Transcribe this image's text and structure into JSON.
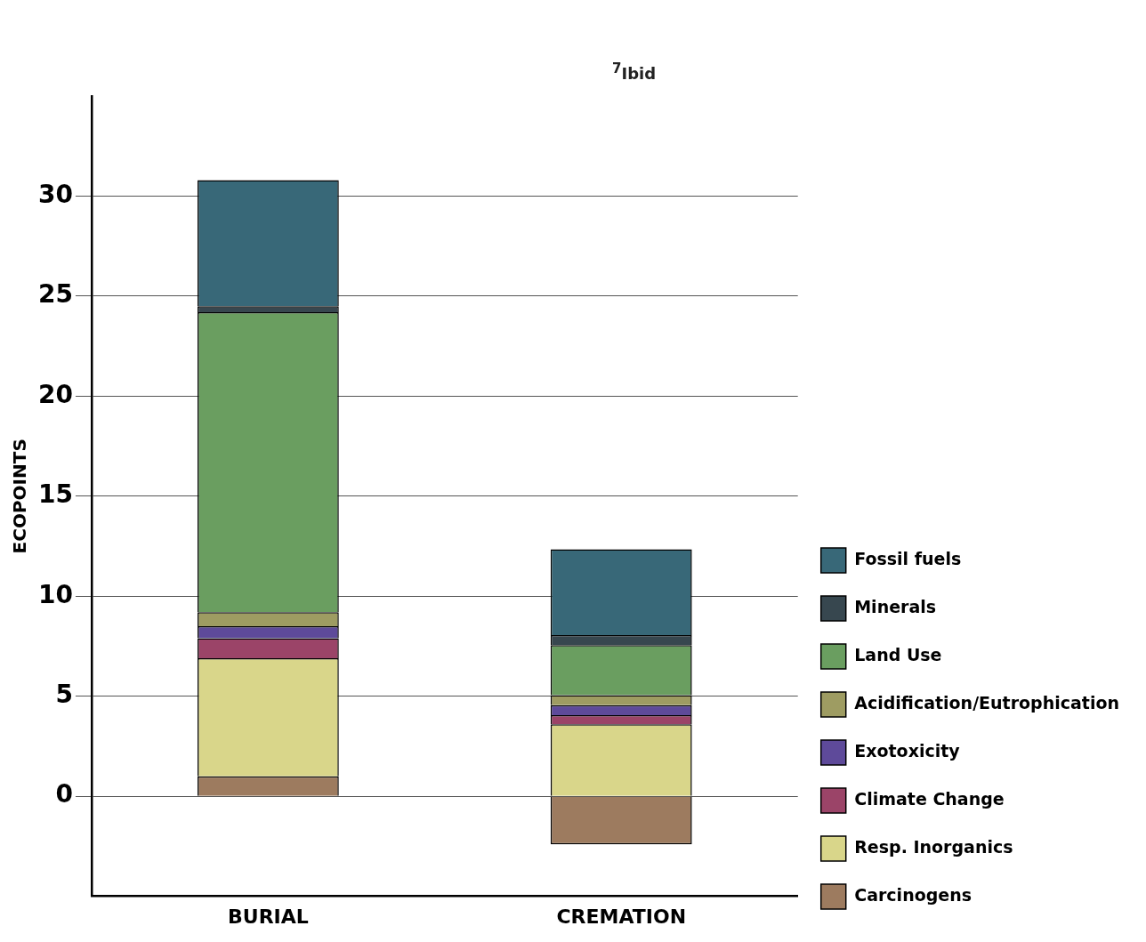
{
  "chart_data": {
    "type": "bar",
    "stacked": true,
    "ylabel": "ECOPOINTS",
    "categories": [
      "BURIAL",
      "CREMATION"
    ],
    "series": [
      {
        "name": "Carcinogens",
        "color": "#9d7b5f",
        "values": [
          1.0,
          -2.4
        ]
      },
      {
        "name": "Resp. Inorganics",
        "color": "#d9d68a",
        "values": [
          5.9,
          3.6
        ]
      },
      {
        "name": "Climate Change",
        "color": "#9b4468",
        "values": [
          1.0,
          0.45
        ]
      },
      {
        "name": "Exotoxicity",
        "color": "#5e4a9a",
        "values": [
          0.6,
          0.5
        ]
      },
      {
        "name": "Acidification/Eutrophication",
        "color": "#9e9c62",
        "values": [
          0.7,
          0.5
        ]
      },
      {
        "name": "Land Use",
        "color": "#6a9e60",
        "values": [
          15.0,
          2.5
        ]
      },
      {
        "name": "Minerals",
        "color": "#37474f",
        "values": [
          0.3,
          0.5
        ]
      },
      {
        "name": "Fossil fuels",
        "color": "#386878",
        "values": [
          6.3,
          4.3
        ]
      }
    ],
    "ylim": [
      -5,
      35
    ],
    "yticks": [
      0,
      5,
      10,
      15,
      20,
      25,
      30
    ],
    "grid": "y",
    "legend": "right",
    "annotations": [
      "$^{7}$Ibid"
    ]
  }
}
